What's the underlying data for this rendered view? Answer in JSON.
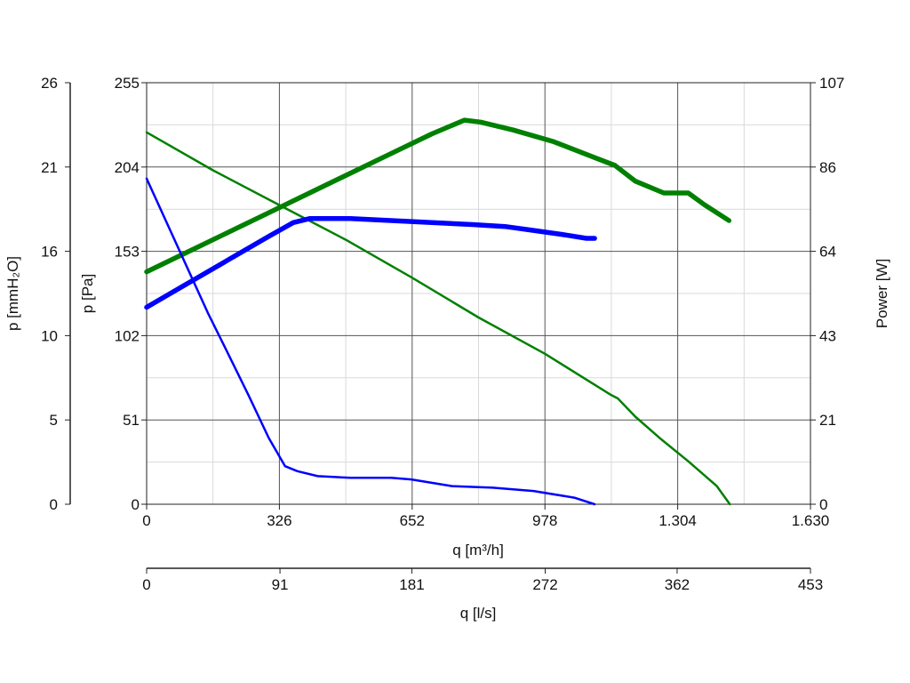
{
  "chart_data": {
    "type": "line",
    "x_primary": {
      "label": "q [m³/h]",
      "range": [
        0,
        1630
      ],
      "ticks": [
        0,
        326,
        652,
        978,
        1304,
        1630
      ],
      "tick_labels": [
        "0",
        "326",
        "652",
        "978",
        "1.304",
        "1.630"
      ]
    },
    "x_secondary": {
      "label": "q [l/s]",
      "range": [
        0,
        453
      ],
      "ticks": [
        0,
        91,
        181,
        272,
        362,
        453
      ],
      "tick_labels": [
        "0",
        "91",
        "181",
        "272",
        "362",
        "453"
      ]
    },
    "y_primary": {
      "label": "p [Pa]",
      "range": [
        0,
        255
      ],
      "ticks": [
        0,
        51,
        102,
        153,
        204,
        255
      ],
      "tick_labels": [
        "0",
        "51",
        "102",
        "153",
        "204",
        "255"
      ]
    },
    "y_left_outer": {
      "label": "p [mmH₂O]",
      "range": [
        0,
        26
      ],
      "ticks": [
        0,
        5,
        10,
        16,
        21,
        26
      ],
      "tick_labels": [
        "0",
        "5",
        "10",
        "16",
        "21",
        "26"
      ]
    },
    "y_right": {
      "label": "Power [W]",
      "range": [
        0,
        107
      ],
      "ticks": [
        0,
        21,
        43,
        64,
        86,
        107
      ],
      "tick_labels": [
        "0",
        "21",
        "43",
        "64",
        "86",
        "107"
      ]
    },
    "grid": true,
    "series": [
      {
        "axis": "pressure",
        "color": "#008000",
        "width": 2.5,
        "points": [
          [
            0,
            225
          ],
          [
            163,
            202
          ],
          [
            326,
            181
          ],
          [
            489,
            160
          ],
          [
            652,
            137
          ],
          [
            815,
            113
          ],
          [
            978,
            91
          ],
          [
            1141,
            66
          ],
          [
            1157,
            64
          ],
          [
            1200,
            53
          ],
          [
            1260,
            40
          ],
          [
            1330,
            26
          ],
          [
            1400,
            11
          ],
          [
            1432,
            0
          ]
        ]
      },
      {
        "axis": "power",
        "color": "#008000",
        "width": 5.5,
        "points": [
          [
            0,
            59
          ],
          [
            100,
            64
          ],
          [
            200,
            69
          ],
          [
            300,
            74
          ],
          [
            400,
            79
          ],
          [
            500,
            84
          ],
          [
            600,
            89
          ],
          [
            700,
            94
          ],
          [
            780,
            97.5
          ],
          [
            820,
            97
          ],
          [
            900,
            95
          ],
          [
            1000,
            92
          ],
          [
            1100,
            88
          ],
          [
            1150,
            86
          ],
          [
            1200,
            82
          ],
          [
            1270,
            79
          ],
          [
            1330,
            79
          ],
          [
            1370,
            76
          ],
          [
            1430,
            72
          ]
        ]
      },
      {
        "axis": "pressure",
        "color": "#0000ff",
        "width": 2.5,
        "points": [
          [
            0,
            197
          ],
          [
            50,
            170
          ],
          [
            100,
            143
          ],
          [
            150,
            116
          ],
          [
            200,
            91
          ],
          [
            250,
            66
          ],
          [
            300,
            40
          ],
          [
            340,
            23
          ],
          [
            370,
            20
          ],
          [
            420,
            17
          ],
          [
            500,
            16
          ],
          [
            600,
            16
          ],
          [
            650,
            15
          ],
          [
            750,
            11
          ],
          [
            850,
            10
          ],
          [
            950,
            8
          ],
          [
            1050,
            4
          ],
          [
            1100,
            0
          ]
        ]
      },
      {
        "axis": "power",
        "color": "#0000ff",
        "width": 5.5,
        "points": [
          [
            0,
            50
          ],
          [
            100,
            56
          ],
          [
            200,
            62
          ],
          [
            300,
            68
          ],
          [
            360,
            71.5
          ],
          [
            400,
            72.5
          ],
          [
            500,
            72.5
          ],
          [
            600,
            72
          ],
          [
            700,
            71.5
          ],
          [
            800,
            71
          ],
          [
            880,
            70.5
          ],
          [
            950,
            69.5
          ],
          [
            1020,
            68.5
          ],
          [
            1080,
            67.5
          ],
          [
            1100,
            67.5
          ]
        ]
      }
    ]
  }
}
